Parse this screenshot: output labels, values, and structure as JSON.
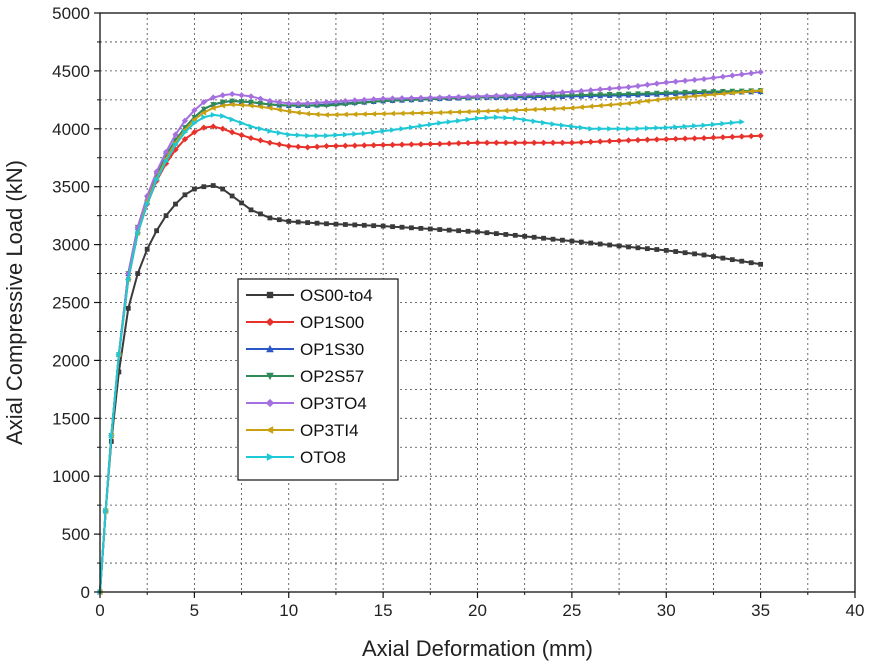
{
  "chart_data": {
    "type": "line",
    "xlabel": "Axial Deformation (mm)",
    "ylabel": "Axial Compressive Load (kN)",
    "xlim": [
      0,
      40
    ],
    "ylim": [
      0,
      5000
    ],
    "xticks": [
      0,
      5,
      10,
      15,
      20,
      25,
      30,
      35,
      40
    ],
    "yticks": [
      0,
      500,
      1000,
      1500,
      2000,
      2500,
      3000,
      3500,
      4000,
      4500,
      5000
    ],
    "grid": true,
    "legend_position": "center-left",
    "series": [
      {
        "name": "OS00-to4",
        "color": "#3a3a3a",
        "marker": "square",
        "x": [
          0,
          0.3,
          0.6,
          1.0,
          1.5,
          2.0,
          2.5,
          3.0,
          3.5,
          4.0,
          4.5,
          5.0,
          5.5,
          6.0,
          6.5,
          7.0,
          8.0,
          9.0,
          10.0,
          12.0,
          15.0,
          18.0,
          20.0,
          22.0,
          25.0,
          28.0,
          30.0,
          32.0,
          35.0
        ],
        "y": [
          0,
          700,
          1300,
          1900,
          2450,
          2750,
          2960,
          3120,
          3250,
          3350,
          3430,
          3480,
          3500,
          3510,
          3480,
          3420,
          3300,
          3230,
          3200,
          3180,
          3160,
          3130,
          3110,
          3080,
          3030,
          2980,
          2950,
          2910,
          2830
        ]
      },
      {
        "name": "OP1S00",
        "color": "#e8312a",
        "marker": "diamond",
        "x": [
          0,
          0.3,
          0.6,
          1.0,
          1.5,
          2.0,
          2.5,
          3.0,
          3.5,
          4.0,
          4.5,
          5.0,
          5.5,
          6.0,
          6.5,
          7.0,
          8.0,
          9.0,
          10.0,
          11.0,
          12.0,
          15.0,
          18.0,
          20.0,
          22.0,
          25.0,
          28.0,
          30.0,
          32.0,
          35.0
        ],
        "y": [
          0,
          700,
          1350,
          2050,
          2700,
          3100,
          3350,
          3550,
          3700,
          3820,
          3910,
          3970,
          4010,
          4020,
          4000,
          3970,
          3920,
          3880,
          3850,
          3840,
          3850,
          3860,
          3870,
          3880,
          3880,
          3880,
          3900,
          3910,
          3920,
          3940
        ]
      },
      {
        "name": "OP1S30",
        "color": "#2a56c6",
        "marker": "triangle-up",
        "x": [
          0,
          0.3,
          0.6,
          1.0,
          1.5,
          2.0,
          2.5,
          3.0,
          3.5,
          4.0,
          4.5,
          5.0,
          5.5,
          6.0,
          6.5,
          7.0,
          8.0,
          9.0,
          10.0,
          11.0,
          12.0,
          15.0,
          18.0,
          20.0,
          22.0,
          25.0,
          28.0,
          30.0,
          32.0,
          35.0
        ],
        "y": [
          0,
          700,
          1350,
          2050,
          2750,
          3150,
          3400,
          3600,
          3770,
          3900,
          4010,
          4100,
          4170,
          4210,
          4230,
          4240,
          4230,
          4210,
          4200,
          4200,
          4210,
          4240,
          4260,
          4270,
          4270,
          4280,
          4290,
          4300,
          4310,
          4320
        ]
      },
      {
        "name": "OP2S57",
        "color": "#2e8b57",
        "marker": "triangle-down",
        "x": [
          0,
          0.3,
          0.6,
          1.0,
          1.5,
          2.0,
          2.5,
          3.0,
          3.5,
          4.0,
          4.5,
          5.0,
          5.5,
          6.0,
          6.5,
          7.0,
          8.0,
          9.0,
          10.0,
          11.0,
          12.0,
          15.0,
          18.0,
          20.0,
          22.0,
          25.0,
          28.0,
          30.0,
          32.0,
          35.0
        ],
        "y": [
          0,
          700,
          1350,
          2050,
          2750,
          3150,
          3400,
          3600,
          3770,
          3900,
          4010,
          4100,
          4170,
          4210,
          4230,
          4240,
          4230,
          4210,
          4200,
          4200,
          4200,
          4240,
          4260,
          4270,
          4280,
          4290,
          4300,
          4310,
          4320,
          4330
        ]
      },
      {
        "name": "OP3TO4",
        "color": "#a66fe0",
        "marker": "diamond",
        "x": [
          0,
          0.3,
          0.6,
          1.0,
          1.5,
          2.0,
          2.5,
          3.0,
          3.5,
          4.0,
          4.5,
          5.0,
          5.5,
          6.0,
          6.5,
          7.0,
          8.0,
          9.0,
          10.0,
          11.0,
          12.0,
          15.0,
          18.0,
          20.0,
          22.0,
          25.0,
          28.0,
          30.0,
          32.0,
          35.0
        ],
        "y": [
          0,
          700,
          1350,
          2050,
          2750,
          3150,
          3420,
          3630,
          3800,
          3950,
          4070,
          4160,
          4230,
          4270,
          4290,
          4300,
          4280,
          4240,
          4220,
          4220,
          4230,
          4260,
          4270,
          4280,
          4290,
          4320,
          4360,
          4400,
          4430,
          4490
        ]
      },
      {
        "name": "OP3TI4",
        "color": "#c9a010",
        "marker": "triangle-left",
        "x": [
          0,
          0.3,
          0.6,
          1.0,
          1.5,
          2.0,
          2.5,
          3.0,
          3.5,
          4.0,
          4.5,
          5.0,
          5.5,
          6.0,
          6.5,
          7.0,
          8.0,
          9.0,
          10.0,
          11.0,
          12.0,
          15.0,
          18.0,
          20.0,
          22.0,
          25.0,
          28.0,
          30.0,
          32.0,
          35.0
        ],
        "y": [
          0,
          700,
          1350,
          2050,
          2700,
          3100,
          3370,
          3570,
          3740,
          3880,
          3990,
          4080,
          4140,
          4180,
          4200,
          4210,
          4200,
          4180,
          4150,
          4130,
          4120,
          4130,
          4140,
          4150,
          4160,
          4180,
          4220,
          4260,
          4290,
          4330
        ]
      },
      {
        "name": "OTO8",
        "color": "#1ec8d6",
        "marker": "triangle-right",
        "x": [
          0,
          0.3,
          0.6,
          1.0,
          1.5,
          2.0,
          2.5,
          3.0,
          3.5,
          4.0,
          4.5,
          5.0,
          5.5,
          6.0,
          6.5,
          7.0,
          8.0,
          9.0,
          10.0,
          11.0,
          12.0,
          14.0,
          16.0,
          18.0,
          20.0,
          21.0,
          22.0,
          24.0,
          26.0,
          28.0,
          30.0,
          32.0,
          34.0
        ],
        "y": [
          0,
          700,
          1350,
          2050,
          2700,
          3100,
          3350,
          3560,
          3720,
          3860,
          3970,
          4050,
          4100,
          4120,
          4110,
          4080,
          4020,
          3980,
          3950,
          3940,
          3940,
          3960,
          4000,
          4050,
          4090,
          4100,
          4090,
          4040,
          4000,
          4000,
          4010,
          4030,
          4060
        ]
      }
    ]
  }
}
